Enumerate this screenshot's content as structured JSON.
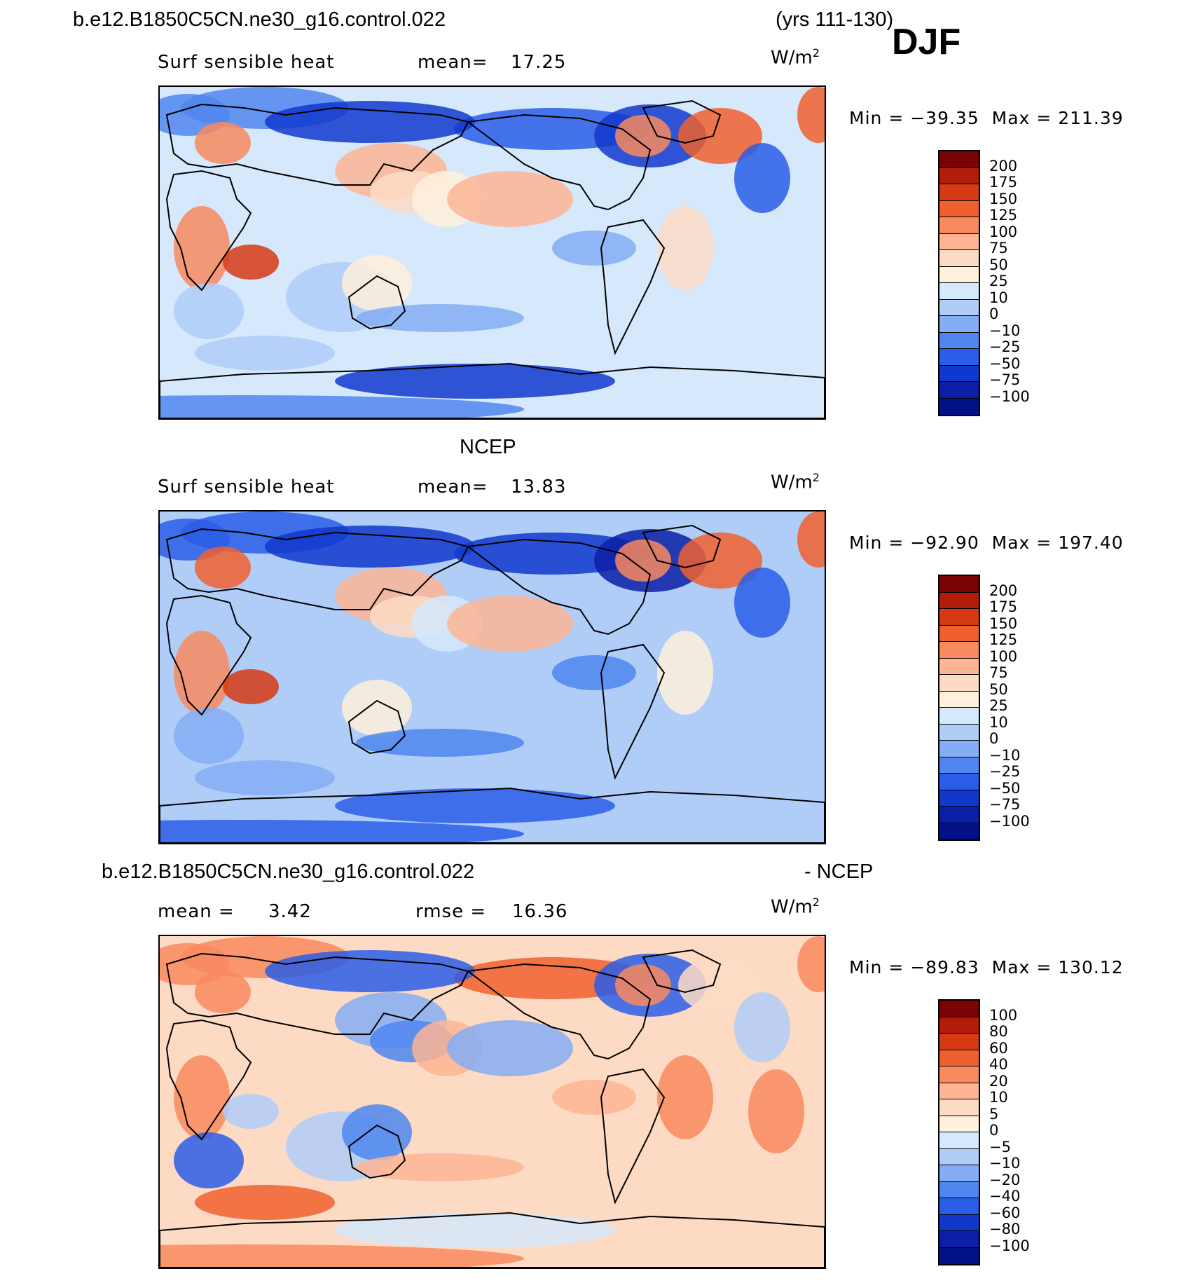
{
  "header": {
    "case_name": "b.e12.B1850C5CN.ne30_g16.control.022",
    "years": "(yrs 111-130)",
    "season": "DJF"
  },
  "panels": [
    {
      "id": "model",
      "title": "",
      "variable": "Surf sensible heat",
      "stat_left": "mean=",
      "stat_left_value": "17.25",
      "stat_right": "",
      "stat_right_value": "",
      "units": "W/m",
      "units_sup": "2",
      "min_label": "Min",
      "min_value": "−39.35",
      "max_label": "Max",
      "max_value": "211.39",
      "colorbar_labels": [
        "200",
        "175",
        "150",
        "125",
        "100",
        "75",
        "50",
        "25",
        "10",
        "0",
        "−10",
        "−25",
        "−50",
        "−75",
        "−100"
      ],
      "colorbar_colors": [
        "#7a0403",
        "#b21c09",
        "#d63a15",
        "#f0602e",
        "#f88a5f",
        "#fdb594",
        "#fddac4",
        "#fff0dc",
        "#d6e8fb",
        "#b0cdf8",
        "#85adf5",
        "#4f86ef",
        "#2a5de6",
        "#1138cc",
        "#0a1ea6",
        "#031186"
      ],
      "baseline_level": 8,
      "blob_levels": [
        11,
        11,
        5,
        6,
        7,
        12,
        13,
        4,
        9,
        10,
        3,
        13,
        6,
        4,
        7,
        4,
        2,
        10,
        5,
        9,
        13,
        11,
        3,
        8,
        9,
        12
      ]
    },
    {
      "id": "obs",
      "title": "NCEP",
      "variable": "Surf sensible heat",
      "stat_left": "mean=",
      "stat_left_value": "13.83",
      "stat_right": "",
      "stat_right_value": "",
      "units": "W/m",
      "units_sup": "2",
      "min_label": "Min",
      "min_value": "−92.90",
      "max_label": "Max",
      "max_value": "197.40",
      "colorbar_labels": [
        "200",
        "175",
        "150",
        "125",
        "100",
        "75",
        "50",
        "25",
        "10",
        "0",
        "−10",
        "−25",
        "−50",
        "−75",
        "−100"
      ],
      "colorbar_colors": [
        "#7a0403",
        "#b21c09",
        "#d63a15",
        "#f0602e",
        "#f88a5f",
        "#fdb594",
        "#fddac4",
        "#fff0dc",
        "#d6e8fb",
        "#b0cdf8",
        "#85adf5",
        "#4f86ef",
        "#2a5de6",
        "#1138cc",
        "#0a1ea6",
        "#031186"
      ],
      "baseline_level": 9,
      "blob_levels": [
        12,
        12,
        5,
        6,
        8,
        13,
        14,
        3,
        9,
        11,
        3,
        13,
        7,
        4,
        7,
        4,
        2,
        11,
        5,
        10,
        12,
        12,
        3,
        9,
        10,
        12
      ]
    },
    {
      "id": "diff",
      "title": "b.e12.B1850C5CN.ne30_g16.control.022",
      "title_suffix": "- NCEP",
      "variable": "",
      "stat_left": "mean =",
      "stat_left_value": "3.42",
      "stat_right": "rmse =",
      "stat_right_value": "16.36",
      "units": "W/m",
      "units_sup": "2",
      "min_label": "Min",
      "min_value": "−89.83",
      "max_label": "Max",
      "max_value": "130.12",
      "colorbar_labels": [
        "100",
        "80",
        "60",
        "40",
        "20",
        "10",
        "5",
        "0",
        "−5",
        "−10",
        "−20",
        "−40",
        "−60",
        "−80",
        "−100"
      ],
      "colorbar_colors": [
        "#7a0403",
        "#b21c09",
        "#d63a15",
        "#f0602e",
        "#f88a5f",
        "#fdb594",
        "#fddac4",
        "#fff0dc",
        "#d6e8fb",
        "#b0cdf8",
        "#85adf5",
        "#4f86ef",
        "#2a5de6",
        "#1138cc",
        "#0a1ea6",
        "#031186"
      ],
      "baseline_level": 6,
      "blob_levels": [
        4,
        4,
        10,
        11,
        5,
        3,
        12,
        4,
        9,
        5,
        6,
        12,
        4,
        4,
        11,
        4,
        9,
        5,
        10,
        3,
        8,
        4,
        4,
        4,
        12,
        9
      ]
    }
  ]
}
